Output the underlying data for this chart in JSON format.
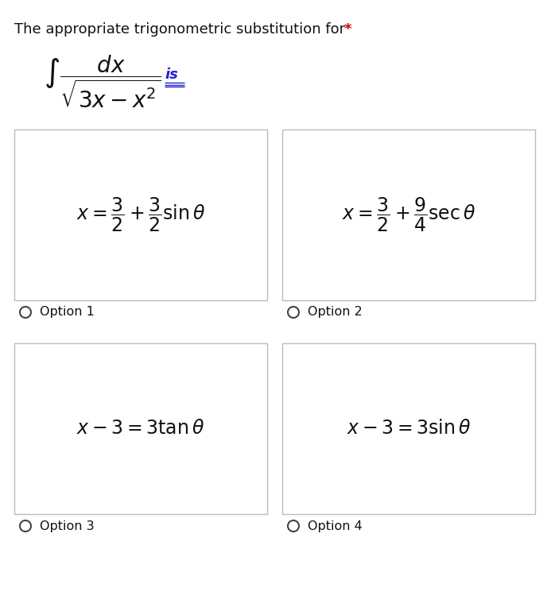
{
  "title_text": "The appropriate trigonometric substitution for ",
  "title_star": "*",
  "title_fontsize": 13,
  "bg_color": "#ffffff",
  "option1_formula": "$x = \\dfrac{3}{2} + \\dfrac{3}{2}\\sin\\theta$",
  "option2_formula": "$x = \\dfrac{3}{2} + \\dfrac{9}{4}\\sec\\theta$",
  "option3_formula": "$x - 3 = 3\\tan\\theta$",
  "option4_formula": "$x - 3 = 3\\sin\\theta$",
  "option1_label": "Option 1",
  "option2_label": "Option 2",
  "option3_label": "Option 3",
  "option4_label": "Option 4",
  "box_edge_color": "#bbbbbb",
  "formula_fontsize": 17,
  "option_label_fontsize": 11.5,
  "text_color": "#111111",
  "blue_color": "#2222cc",
  "red_color": "#cc0000",
  "integral_fontsize": 20
}
